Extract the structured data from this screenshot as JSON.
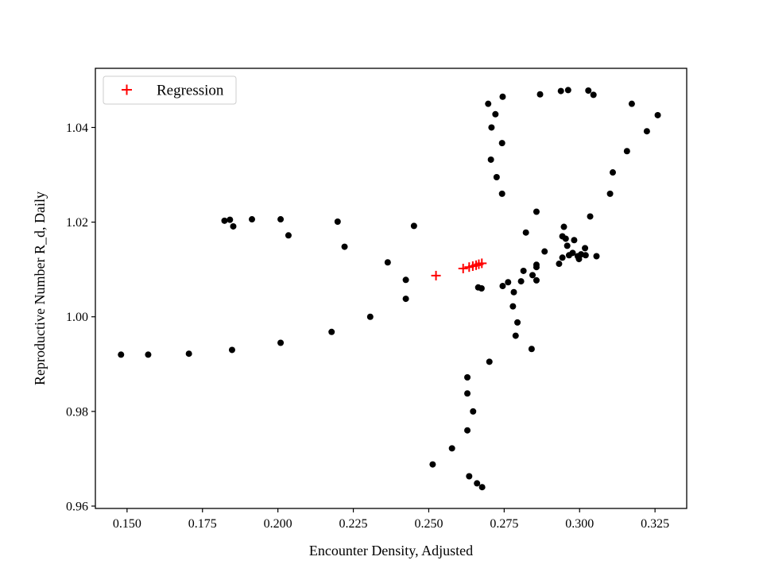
{
  "chart_data": {
    "type": "scatter",
    "xlabel": "Encounter Density, Adjusted",
    "ylabel": "Reproductive Number R_d, Daily",
    "xlim": [
      0.1395,
      0.3355
    ],
    "ylim": [
      0.9595,
      1.0525
    ],
    "xticks": [
      {
        "value": 0.15,
        "label": "0.150"
      },
      {
        "value": 0.175,
        "label": "0.175"
      },
      {
        "value": 0.2,
        "label": "0.200"
      },
      {
        "value": 0.225,
        "label": "0.225"
      },
      {
        "value": 0.25,
        "label": "0.250"
      },
      {
        "value": 0.275,
        "label": "0.275"
      },
      {
        "value": 0.3,
        "label": "0.300"
      },
      {
        "value": 0.325,
        "label": "0.325"
      }
    ],
    "yticks": [
      {
        "value": 0.96,
        "label": "0.96"
      },
      {
        "value": 0.98,
        "label": "0.98"
      },
      {
        "value": 1.0,
        "label": "1.00"
      },
      {
        "value": 1.02,
        "label": "1.02"
      },
      {
        "value": 1.04,
        "label": "1.04"
      }
    ],
    "grid": false,
    "legend": {
      "position": "top-left",
      "entries": [
        "Regression"
      ]
    },
    "series": [
      {
        "marker": "dot",
        "color": "#000000",
        "points": [
          [
            0.148,
            0.992
          ],
          [
            0.157,
            0.992
          ],
          [
            0.1705,
            0.9922
          ],
          [
            0.1848,
            0.993
          ],
          [
            0.2009,
            0.9945
          ],
          [
            0.2178,
            0.9968
          ],
          [
            0.2306,
            1.0
          ],
          [
            0.2424,
            1.0038
          ],
          [
            0.2424,
            1.0078
          ],
          [
            0.2364,
            1.0115
          ],
          [
            0.2221,
            1.0148
          ],
          [
            0.2035,
            1.0172
          ],
          [
            0.1852,
            1.0191
          ],
          [
            0.1823,
            1.0203
          ],
          [
            0.1841,
            1.0205
          ],
          [
            0.1914,
            1.0206
          ],
          [
            0.2009,
            1.0206
          ],
          [
            0.2198,
            1.0201
          ],
          [
            0.2451,
            1.0192
          ],
          [
            0.2664,
            1.0062
          ],
          [
            0.2675,
            1.006
          ],
          [
            0.2745,
            1.0065
          ],
          [
            0.2763,
            1.0073
          ],
          [
            0.2782,
            1.0052
          ],
          [
            0.2779,
            1.0022
          ],
          [
            0.2794,
            0.9988
          ],
          [
            0.2788,
            0.996
          ],
          [
            0.2841,
            0.9932
          ],
          [
            0.2806,
            1.0075
          ],
          [
            0.2814,
            1.0097
          ],
          [
            0.2844,
            1.0088
          ],
          [
            0.2857,
            1.0077
          ],
          [
            0.2857,
            1.0105
          ],
          [
            0.2857,
            1.011
          ],
          [
            0.2884,
            1.0138
          ],
          [
            0.2822,
            1.0178
          ],
          [
            0.2857,
            1.0222
          ],
          [
            0.2932,
            1.0112
          ],
          [
            0.2943,
            1.0125
          ],
          [
            0.2943,
            1.017
          ],
          [
            0.2948,
            1.019
          ],
          [
            0.2954,
            1.0165
          ],
          [
            0.2959,
            1.015
          ],
          [
            0.2965,
            1.013
          ],
          [
            0.2977,
            1.0135
          ],
          [
            0.2982,
            1.0162
          ],
          [
            0.2994,
            1.0128
          ],
          [
            0.2998,
            1.0122
          ],
          [
            0.3005,
            1.0132
          ],
          [
            0.3018,
            1.0145
          ],
          [
            0.302,
            1.013
          ],
          [
            0.3035,
            1.0212
          ],
          [
            0.3056,
            1.0128
          ],
          [
            0.2701,
            0.9905
          ],
          [
            0.2628,
            0.9872
          ],
          [
            0.2628,
            0.9838
          ],
          [
            0.2647,
            0.98
          ],
          [
            0.2628,
            0.976
          ],
          [
            0.2577,
            0.9722
          ],
          [
            0.2513,
            0.9688
          ],
          [
            0.2634,
            0.9663
          ],
          [
            0.266,
            0.9648
          ],
          [
            0.2677,
            0.964
          ],
          [
            0.2743,
            1.026
          ],
          [
            0.2725,
            1.0295
          ],
          [
            0.2706,
            1.0332
          ],
          [
            0.2743,
            1.0367
          ],
          [
            0.2708,
            1.04
          ],
          [
            0.2721,
            1.0428
          ],
          [
            0.2697,
            1.045
          ],
          [
            0.2745,
            1.0465
          ],
          [
            0.2869,
            1.047
          ],
          [
            0.2938,
            1.0477
          ],
          [
            0.2962,
            1.0479
          ],
          [
            0.3029,
            1.0478
          ],
          [
            0.3046,
            1.0469
          ],
          [
            0.3173,
            1.045
          ],
          [
            0.3259,
            1.0426
          ],
          [
            0.3223,
            1.0392
          ],
          [
            0.3157,
            1.035
          ],
          [
            0.311,
            1.0305
          ],
          [
            0.3101,
            1.026
          ]
        ]
      },
      {
        "name": "Regression",
        "marker": "plus",
        "color": "#ff0000",
        "points": [
          [
            0.2524,
            1.0087
          ],
          [
            0.2614,
            1.0102
          ],
          [
            0.2634,
            1.0105
          ],
          [
            0.2646,
            1.0107
          ],
          [
            0.2657,
            1.0109
          ],
          [
            0.2666,
            1.0111
          ],
          [
            0.2676,
            1.0113
          ]
        ]
      }
    ]
  }
}
